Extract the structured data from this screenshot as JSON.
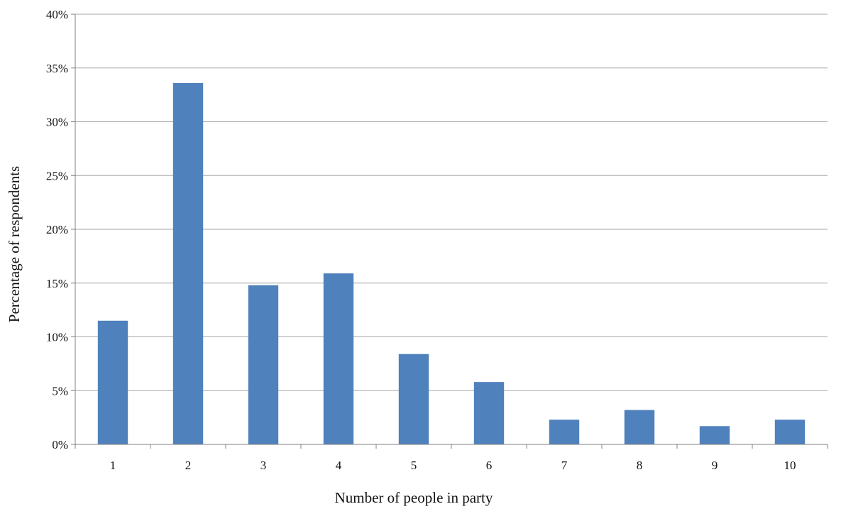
{
  "chart_data": {
    "type": "bar",
    "title": "",
    "xlabel": "Number of people in party",
    "ylabel": "Percentage of respondents",
    "categories": [
      "1",
      "2",
      "3",
      "4",
      "5",
      "6",
      "7",
      "8",
      "9",
      "10"
    ],
    "values": [
      11.5,
      33.6,
      14.8,
      15.9,
      8.4,
      5.8,
      2.3,
      3.2,
      1.7,
      2.3
    ],
    "value_unit": "%",
    "ylim": [
      0,
      40
    ],
    "yticks": [
      "0%",
      "5%",
      "10%",
      "15%",
      "20%",
      "25%",
      "30%",
      "35%",
      "40%"
    ],
    "grid": "horizontal",
    "legend": "none",
    "bar_color": "#4F81BD",
    "grid_color": "#A6A6A6",
    "axis_color": "#808080"
  }
}
